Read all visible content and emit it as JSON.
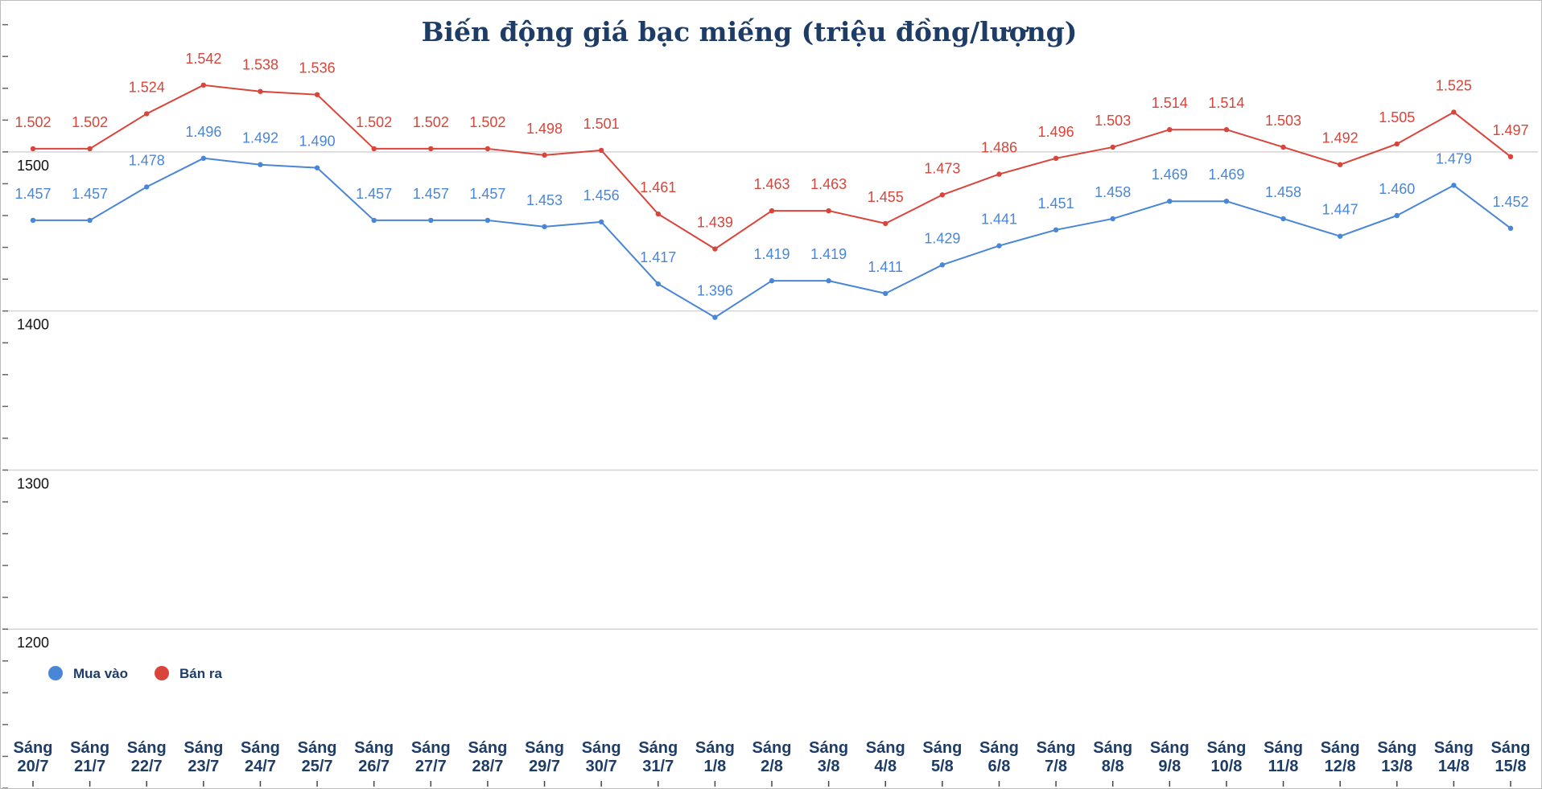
{
  "chart_data": {
    "type": "line",
    "title": "Biến động giá bạc miếng (triệu đồng/lượng)",
    "categories": [
      [
        "Sáng",
        "20/7"
      ],
      [
        "Sáng",
        "21/7"
      ],
      [
        "Sáng",
        "22/7"
      ],
      [
        "Sáng",
        "23/7"
      ],
      [
        "Sáng",
        "24/7"
      ],
      [
        "Sáng",
        "25/7"
      ],
      [
        "Sáng",
        "26/7"
      ],
      [
        "Sáng",
        "27/7"
      ],
      [
        "Sáng",
        "28/7"
      ],
      [
        "Sáng",
        "29/7"
      ],
      [
        "Sáng",
        "30/7"
      ],
      [
        "Sáng",
        "31/7"
      ],
      [
        "Sáng",
        "1/8"
      ],
      [
        "Sáng",
        "2/8"
      ],
      [
        "Sáng",
        "3/8"
      ],
      [
        "Sáng",
        "4/8"
      ],
      [
        "Sáng",
        "5/8"
      ],
      [
        "Sáng",
        "6/8"
      ],
      [
        "Sáng",
        "7/8"
      ],
      [
        "Sáng",
        "8/8"
      ],
      [
        "Sáng",
        "9/8"
      ],
      [
        "Sáng",
        "10/8"
      ],
      [
        "Sáng",
        "11/8"
      ],
      [
        "Sáng",
        "12/8"
      ],
      [
        "Sáng",
        "13/8"
      ],
      [
        "Sáng",
        "14/8"
      ],
      [
        "Sáng",
        "15/8"
      ]
    ],
    "y_ticks": [
      "1200",
      "1300",
      "1400",
      "1500"
    ],
    "y_tick_values": [
      1200,
      1300,
      1400,
      1500
    ],
    "ylim": [
      1100,
      1595
    ],
    "grid": true,
    "legend_position": "bottom-left",
    "series": [
      {
        "name": "Mua vào",
        "color": "#4a86d8",
        "values": [
          1457,
          1457,
          1478,
          1496,
          1492,
          1490,
          1457,
          1457,
          1457,
          1453,
          1456,
          1417,
          1396,
          1419,
          1419,
          1411,
          1429,
          1441,
          1451,
          1458,
          1469,
          1469,
          1458,
          1447,
          1460,
          1479,
          1452
        ],
        "labels": [
          "1.457",
          "1.457",
          "1.478",
          "1.496",
          "1.492",
          "1.490",
          "1.457",
          "1.457",
          "1.457",
          "1.453",
          "1.456",
          "1.417",
          "1.396",
          "1.419",
          "1.419",
          "1.411",
          "1.429",
          "1.441",
          "1.451",
          "1.458",
          "1.469",
          "1.469",
          "1.458",
          "1.447",
          "1.460",
          "1.479",
          "1.452"
        ]
      },
      {
        "name": "Bán ra",
        "color": "#d9453a",
        "values": [
          1502,
          1502,
          1524,
          1542,
          1538,
          1536,
          1502,
          1502,
          1502,
          1498,
          1501,
          1461,
          1439,
          1463,
          1463,
          1455,
          1473,
          1486,
          1496,
          1503,
          1514,
          1514,
          1503,
          1492,
          1505,
          1525,
          1497
        ],
        "labels": [
          "1.502",
          "1.502",
          "1.524",
          "1.542",
          "1.538",
          "1.536",
          "1.502",
          "1.502",
          "1.502",
          "1.498",
          "1.501",
          "1.461",
          "1.439",
          "1.463",
          "1.463",
          "1.455",
          "1.473",
          "1.486",
          "1.496",
          "1.503",
          "1.514",
          "1.514",
          "1.503",
          "1.492",
          "1.505",
          "1.525",
          "1.497"
        ]
      }
    ]
  }
}
